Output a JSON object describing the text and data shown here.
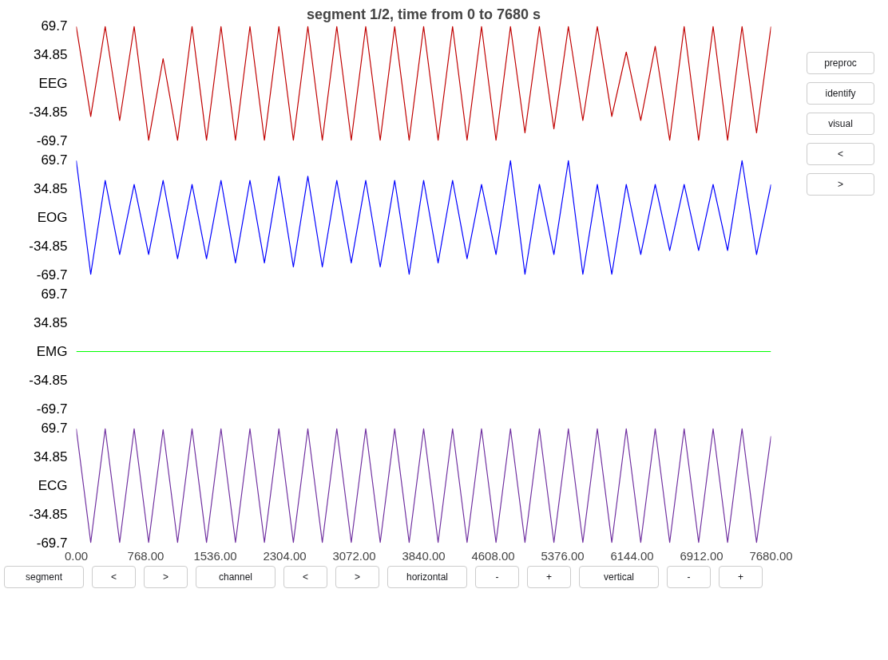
{
  "chart_data": [
    {
      "type": "line",
      "title": "segment 1/2, time from 0 to 7680 s",
      "x": [
        0,
        160,
        320,
        480,
        640,
        800,
        960,
        1120,
        1280,
        1440,
        1600,
        1760,
        1920,
        2080,
        2240,
        2400,
        2560,
        2720,
        2880,
        3040,
        3200,
        3360,
        3520,
        3680,
        3840,
        4000,
        4160,
        4320,
        4480,
        4640,
        4800,
        4960,
        5120,
        5280,
        5440,
        5600,
        5760,
        5920,
        6080,
        6240,
        6400,
        6560,
        6720,
        6880,
        7040,
        7200,
        7360,
        7520,
        7680
      ],
      "series": [
        {
          "name": "EEG",
          "color": "#c00000",
          "values": [
            69,
            -40,
            69,
            -45,
            69,
            -69,
            30,
            -69,
            69,
            -69,
            69,
            -69,
            69,
            -69,
            69,
            -69,
            69,
            -69,
            69,
            -69,
            69,
            -69,
            69,
            -69,
            69,
            -69,
            69,
            -69,
            69,
            -69,
            69,
            -60,
            69,
            -55,
            69,
            -45,
            69,
            -40,
            38,
            -45,
            45,
            -69,
            69,
            -69,
            69,
            -69,
            69,
            -60,
            69
          ]
        }
      ],
      "xlim": [
        0,
        7680
      ],
      "ylim": [
        -69.7,
        69.7
      ],
      "yticks": [
        -69.7,
        -34.85,
        34.85,
        69.7
      ],
      "tick_labels": "y",
      "annotations": [
        "preproc",
        "identify",
        "visual",
        "<",
        ">"
      ]
    },
    {
      "type": "line",
      "x": [
        0,
        160,
        320,
        480,
        640,
        800,
        960,
        1120,
        1280,
        1440,
        1600,
        1760,
        1920,
        2080,
        2240,
        2400,
        2560,
        2720,
        2880,
        3040,
        3200,
        3360,
        3520,
        3680,
        3840,
        4000,
        4160,
        4320,
        4480,
        4640,
        4800,
        4960,
        5120,
        5280,
        5440,
        5600,
        5760,
        5920,
        6080,
        6240,
        6400,
        6560,
        6720,
        6880,
        7040,
        7200,
        7360,
        7520,
        7680
      ],
      "series": [
        {
          "name": "EOG",
          "color": "#0000ff",
          "values": [
            69,
            -69,
            45,
            -45,
            40,
            -45,
            45,
            -50,
            40,
            -50,
            45,
            -55,
            45,
            -55,
            50,
            -60,
            50,
            -60,
            45,
            -55,
            45,
            -60,
            45,
            -69,
            45,
            -55,
            45,
            -50,
            40,
            -45,
            69,
            -69,
            40,
            -45,
            69,
            -69,
            40,
            -69,
            40,
            -45,
            40,
            -40,
            40,
            -40,
            40,
            -40,
            69,
            -45,
            40
          ]
        }
      ],
      "xlim": [
        0,
        7680
      ],
      "ylim": [
        -69.7,
        69.7
      ],
      "yticks": [
        -69.7,
        -34.85,
        34.85,
        69.7
      ],
      "tick_labels": "y"
    },
    {
      "type": "line",
      "series": [
        {
          "name": "EMG",
          "color": "#00ff00",
          "x": [
            0,
            7680
          ],
          "values": [
            0,
            0
          ]
        }
      ],
      "xlim": [
        0,
        7680
      ],
      "ylim": [
        -69.7,
        69.7
      ],
      "yticks": [
        -69.7,
        -34.85,
        34.85,
        69.7
      ],
      "tick_labels": "y"
    },
    {
      "type": "line",
      "x": [
        0,
        160,
        320,
        480,
        640,
        800,
        960,
        1120,
        1280,
        1440,
        1600,
        1760,
        1920,
        2080,
        2240,
        2400,
        2560,
        2720,
        2880,
        3040,
        3200,
        3360,
        3520,
        3680,
        3840,
        4000,
        4160,
        4320,
        4480,
        4640,
        4800,
        4960,
        5120,
        5280,
        5440,
        5600,
        5760,
        5920,
        6080,
        6240,
        6400,
        6560,
        6720,
        6880,
        7040,
        7200,
        7360,
        7520,
        7680
      ],
      "series": [
        {
          "name": "ECG",
          "color": "#7030a0",
          "values": [
            69,
            -69,
            69,
            -69,
            69,
            -69,
            68,
            -69,
            69,
            -69,
            69,
            -69,
            69,
            -69,
            69,
            -69,
            69,
            -69,
            69,
            -69,
            69,
            -69,
            69,
            -69,
            69,
            -69,
            69,
            -69,
            69,
            -69,
            69,
            -69,
            69,
            -69,
            69,
            -69,
            69,
            -69,
            69,
            -69,
            69,
            -69,
            69,
            -69,
            69,
            -69,
            69,
            -69,
            60
          ]
        }
      ],
      "xlim": [
        0,
        7680
      ],
      "ylim": [
        -69.7,
        69.7
      ],
      "yticks": [
        -69.7,
        -34.85,
        34.85,
        69.7
      ],
      "xticks": [
        {
          "value": 0,
          "label": "0.00"
        },
        {
          "value": 768,
          "label": "768.00"
        },
        {
          "value": 1536,
          "label": "1536.00"
        },
        {
          "value": 2304,
          "label": "2304.00"
        },
        {
          "value": 3072,
          "label": "3072.00"
        },
        {
          "value": 3840,
          "label": "3840.00"
        },
        {
          "value": 4608,
          "label": "4608.00"
        },
        {
          "value": 5376,
          "label": "5376.00"
        },
        {
          "value": 6144,
          "label": "6144.00"
        },
        {
          "value": 6912,
          "label": "6912.00"
        },
        {
          "value": 7680,
          "label": "7680.00"
        }
      ],
      "annotations": [
        "segment",
        "<",
        ">",
        "channel",
        "<",
        ">",
        "horizontal",
        "-",
        "+",
        "vertical",
        "-",
        "+"
      ]
    }
  ]
}
